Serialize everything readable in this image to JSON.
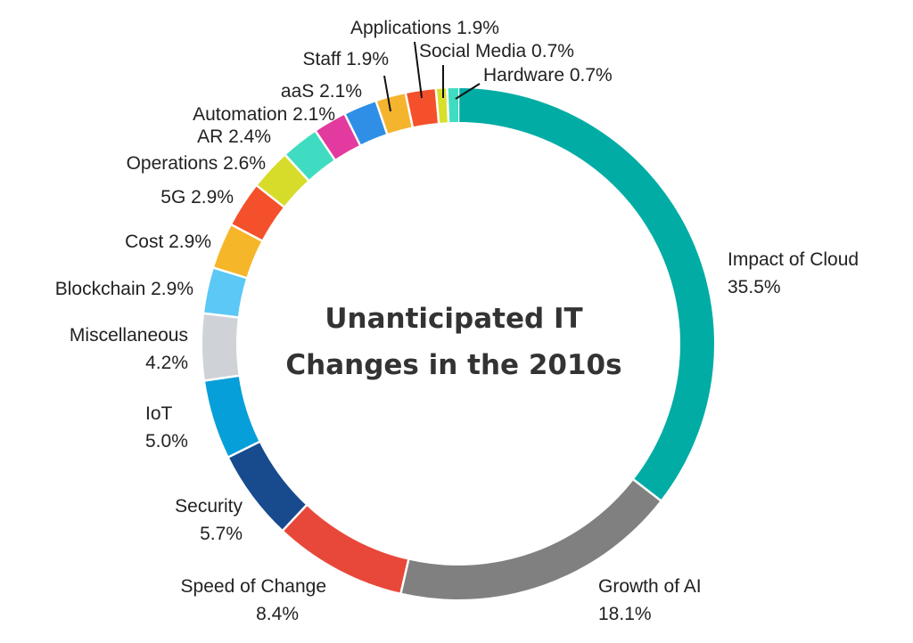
{
  "chart_data": {
    "type": "pie",
    "variant": "donut",
    "title": [
      "Unanticipated IT",
      "Changes in the 2010s"
    ],
    "slices": [
      {
        "name": "Impact of Cloud",
        "value": 35.5,
        "label": "35.5%",
        "color": "#00ACA4"
      },
      {
        "name": "Growth of AI",
        "value": 18.1,
        "label": "18.1%",
        "color": "#808080"
      },
      {
        "name": "Speed of Change",
        "value": 8.4,
        "label": "8.4%",
        "color": "#E8483A"
      },
      {
        "name": "Security",
        "value": 5.7,
        "label": "5.7%",
        "color": "#174B8E"
      },
      {
        "name": "IoT",
        "value": 5.0,
        "label": "5.0%",
        "color": "#079FD9"
      },
      {
        "name": "Miscellaneous",
        "value": 4.2,
        "label": "4.2%",
        "color": "#CFD2D6"
      },
      {
        "name": "Blockchain",
        "value": 2.9,
        "label": "2.9%",
        "color": "#5BC8F5"
      },
      {
        "name": "Cost",
        "value": 2.9,
        "label": "2.9%",
        "color": "#F6B62A"
      },
      {
        "name": "5G",
        "value": 2.9,
        "label": "2.9%",
        "color": "#F4502B"
      },
      {
        "name": "Operations",
        "value": 2.6,
        "label": "2.6%",
        "color": "#D7DC2A"
      },
      {
        "name": "AR",
        "value": 2.4,
        "label": "2.4%",
        "color": "#3FDCC1"
      },
      {
        "name": "Automation",
        "value": 2.1,
        "label": "2.1%",
        "color": "#E23A9E"
      },
      {
        "name": "aaS",
        "value": 2.1,
        "label": "2.1%",
        "color": "#2F8FE6"
      },
      {
        "name": "Staff",
        "value": 1.9,
        "label": "1.9%",
        "color": "#F4B42E"
      },
      {
        "name": "Applications",
        "value": 1.9,
        "label": "1.9%",
        "color": "#F4502B"
      },
      {
        "name": "Social Media",
        "value": 0.7,
        "label": "0.7%",
        "color": "#D8E02A"
      },
      {
        "name": "Hardware",
        "value": 0.7,
        "label": "0.7%",
        "color": "#3FDCC1"
      }
    ]
  }
}
